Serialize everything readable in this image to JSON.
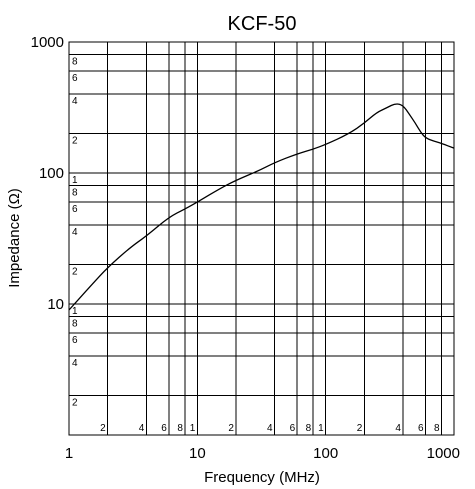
{
  "chart_data": {
    "type": "line",
    "title": "KCF-50",
    "xlabel": "Frequency (MHz)",
    "ylabel": "Impedance (Ω)",
    "xscale": "log",
    "yscale": "log",
    "xlim": [
      1,
      1000
    ],
    "ylim": [
      1,
      1000
    ],
    "grid": true,
    "x_major_ticks": [
      "1",
      "10",
      "100",
      "1000"
    ],
    "y_major_ticks": [
      "1000",
      "100",
      "10"
    ],
    "x_minor_labels": [
      "2",
      "4",
      "6",
      "8",
      "1"
    ],
    "y_minor_labels": [
      "1",
      "8",
      "6",
      "4",
      "2"
    ],
    "series": [
      {
        "x": [
          1,
          1.5,
          2,
          3,
          4,
          6,
          8,
          10,
          15,
          20,
          30,
          40,
          60,
          80,
          100,
          150,
          200,
          250,
          300,
          350,
          400,
          450,
          500,
          550,
          600,
          700,
          800,
          1000
        ],
        "y": [
          9,
          14,
          19,
          27,
          33,
          46,
          53,
          60,
          76,
          88,
          104,
          120,
          140,
          152,
          165,
          198,
          240,
          290,
          315,
          340,
          330,
          280,
          240,
          205,
          185,
          175,
          168,
          155
        ]
      }
    ]
  }
}
